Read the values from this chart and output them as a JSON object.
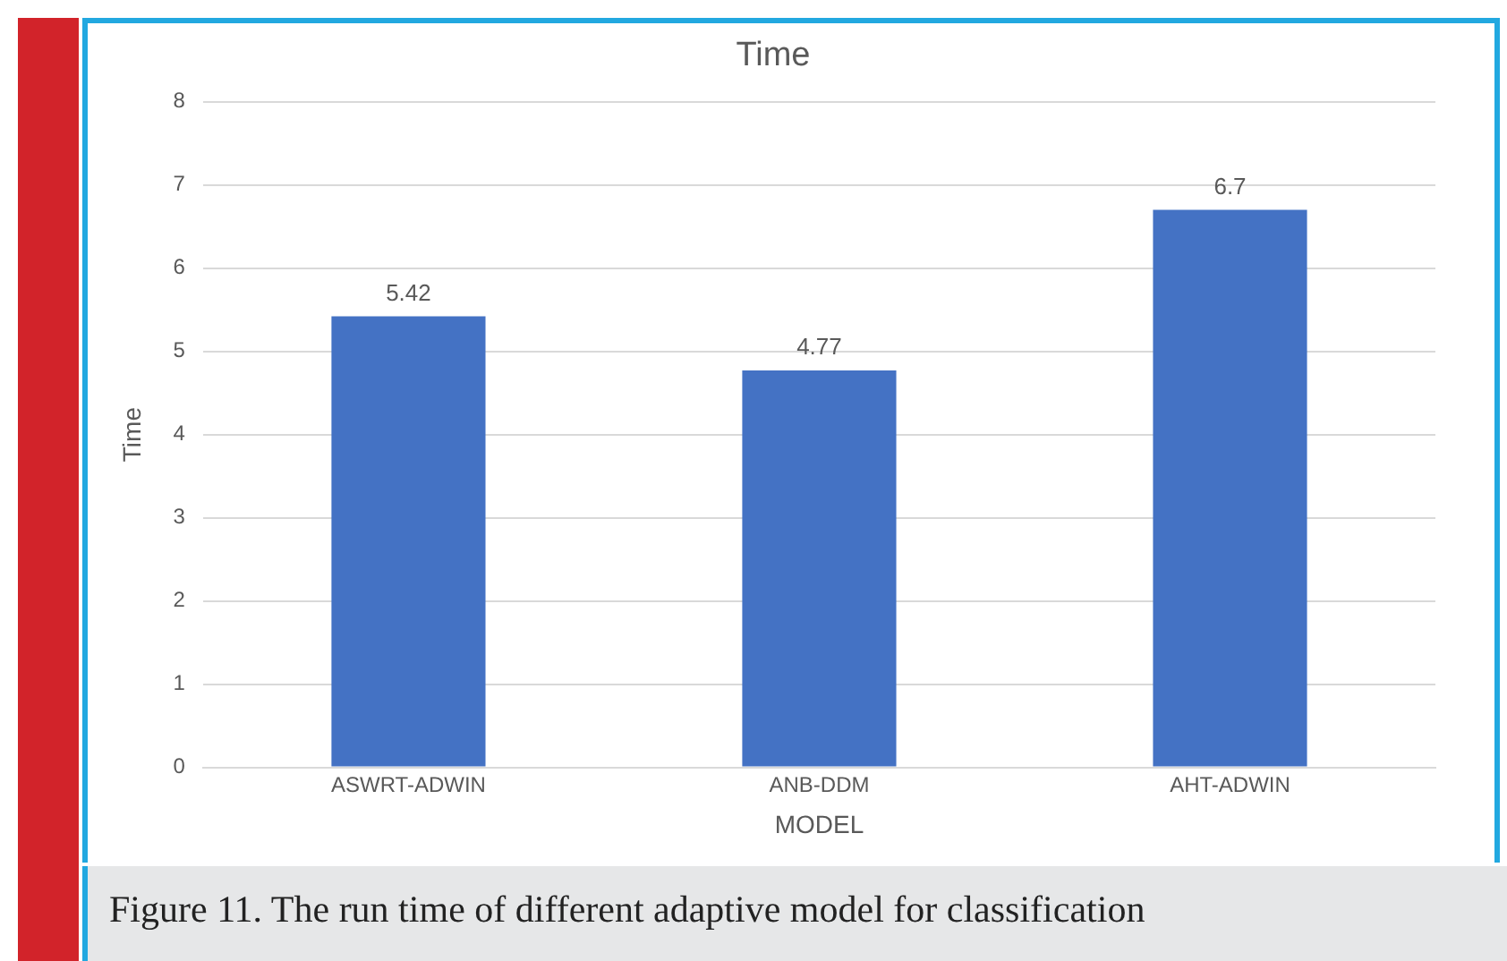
{
  "chart_data": {
    "type": "bar",
    "title": "Time",
    "xlabel": "MODEL",
    "ylabel": "Time",
    "categories": [
      "ASWRT-ADWIN",
      "ANB-DDM",
      "AHT-ADWIN"
    ],
    "values": [
      5.42,
      4.77,
      6.7
    ],
    "color": "#4472c4",
    "ylim": [
      0,
      8
    ],
    "yticks": [
      0,
      1,
      2,
      3,
      4,
      5,
      6,
      7,
      8
    ],
    "grid": "y",
    "data_labels": true,
    "legend": false,
    "annotations": [
      "Figure 11. The run time of different adaptive model for classification"
    ]
  }
}
